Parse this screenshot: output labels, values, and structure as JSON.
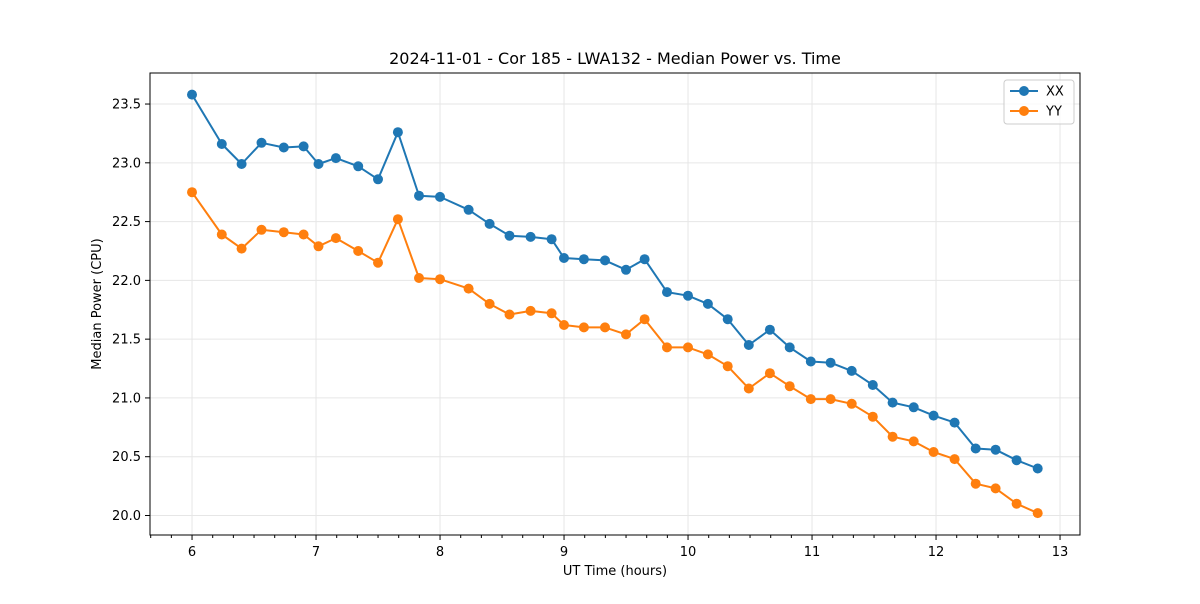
{
  "chart_data": {
    "type": "line",
    "title": "2024-11-01 - Cor 185 - LWA132 - Median Power vs. Time",
    "xlabel": "UT Time (hours)",
    "ylabel": "Median Power (CPU)",
    "xlim": [
      5.661,
      13.161
    ],
    "ylim": [
      19.834,
      23.764
    ],
    "x_major_ticks": [
      6,
      7,
      8,
      9,
      10,
      11,
      12,
      13
    ],
    "x_minor_ticks_per_hour": 6,
    "y_major_ticks": [
      20.0,
      20.5,
      21.0,
      21.5,
      22.0,
      22.5,
      23.0,
      23.5
    ],
    "grid": true,
    "grid_color": "#e6e6e6",
    "axis_color": "#000000",
    "background_color": "#ffffff",
    "legend_position": "upper right",
    "marker": "circle",
    "x": [
      6.0,
      6.24,
      6.4,
      6.56,
      6.74,
      6.9,
      7.02,
      7.16,
      7.34,
      7.5,
      7.66,
      7.83,
      8.0,
      8.23,
      8.4,
      8.56,
      8.73,
      8.9,
      9.0,
      9.16,
      9.33,
      9.5,
      9.65,
      9.83,
      10.0,
      10.16,
      10.32,
      10.49,
      10.66,
      10.82,
      10.99,
      11.15,
      11.32,
      11.49,
      11.65,
      11.82,
      11.98,
      12.15,
      12.32,
      12.48,
      12.65,
      12.82
    ],
    "series": [
      {
        "name": "XX",
        "color": "#1f77b4",
        "values": [
          23.58,
          23.16,
          22.99,
          23.17,
          23.13,
          23.14,
          22.99,
          23.04,
          22.97,
          22.86,
          23.26,
          22.72,
          22.71,
          22.6,
          22.48,
          22.38,
          22.37,
          22.35,
          22.19,
          22.18,
          22.17,
          22.09,
          22.18,
          21.9,
          21.87,
          21.8,
          21.67,
          21.45,
          21.58,
          21.43,
          21.31,
          21.3,
          21.23,
          21.11,
          20.96,
          20.92,
          20.85,
          20.79,
          20.57,
          20.56,
          20.47,
          20.4
        ]
      },
      {
        "name": "YY",
        "color": "#ff7f0e",
        "values": [
          22.75,
          22.39,
          22.27,
          22.43,
          22.41,
          22.39,
          22.29,
          22.36,
          22.25,
          22.15,
          22.52,
          22.02,
          22.01,
          21.93,
          21.8,
          21.71,
          21.74,
          21.72,
          21.62,
          21.6,
          21.6,
          21.54,
          21.67,
          21.43,
          21.43,
          21.37,
          21.27,
          21.08,
          21.21,
          21.1,
          20.99,
          20.99,
          20.95,
          20.84,
          20.67,
          20.63,
          20.54,
          20.48,
          20.27,
          20.23,
          20.1,
          20.02
        ]
      }
    ]
  }
}
